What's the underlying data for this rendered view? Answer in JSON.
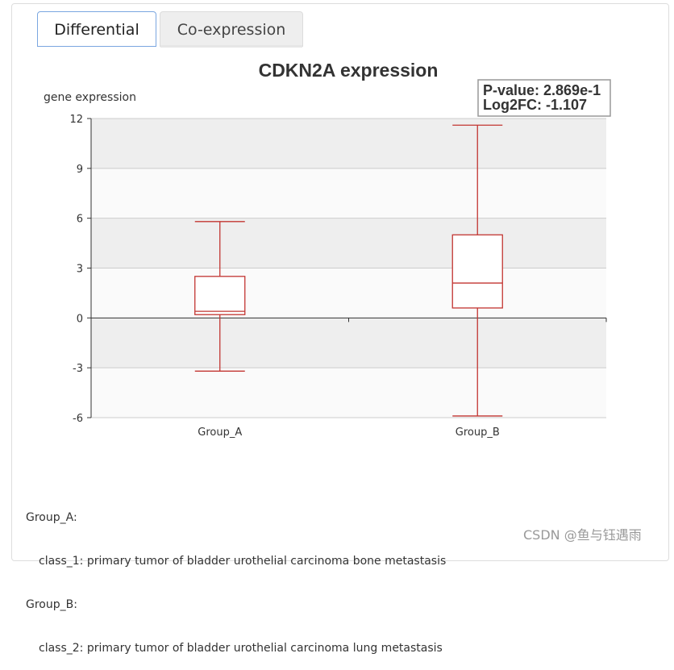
{
  "tabs": [
    {
      "label": "Differential",
      "active": true
    },
    {
      "label": "Co-expression",
      "active": false
    }
  ],
  "chart_data": {
    "type": "boxplot",
    "title": "CDKN2A expression",
    "ylabel": "gene expression",
    "xlabel": "",
    "ylim": [
      -6,
      12
    ],
    "yticks": [
      12,
      9,
      6,
      3,
      0,
      -3,
      -6
    ],
    "ytick_labels": [
      "12",
      "9",
      "6",
      "3",
      "0",
      "-3",
      "-6"
    ],
    "categories": [
      "Group_A",
      "Group_B"
    ],
    "boxes": [
      {
        "category": "Group_A",
        "min": -3.2,
        "q1": 0.2,
        "median": 0.4,
        "q3": 2.5,
        "max": 5.8
      },
      {
        "category": "Group_B",
        "min": -5.9,
        "q1": 0.6,
        "median": 2.1,
        "q3": 5.0,
        "max": 11.6
      }
    ],
    "annotation": {
      "pvalue": "P-value: 2.869e-1",
      "log2fc": "Log2FC: -1.107"
    },
    "colors": {
      "box": "#c23531",
      "band_dark": "#eeeeee",
      "band_light": "#fafafa",
      "axis": "#333333"
    }
  },
  "description": {
    "group_a_label": "Group_A:",
    "group_a_class": "class_1: primary tumor of bladder urothelial carcinoma bone metastasis",
    "group_b_label": "Group_B:",
    "group_b_class": "class_2: primary tumor of bladder urothelial carcinoma lung metastasis"
  },
  "watermark": "CSDN @鱼与钰遇雨"
}
